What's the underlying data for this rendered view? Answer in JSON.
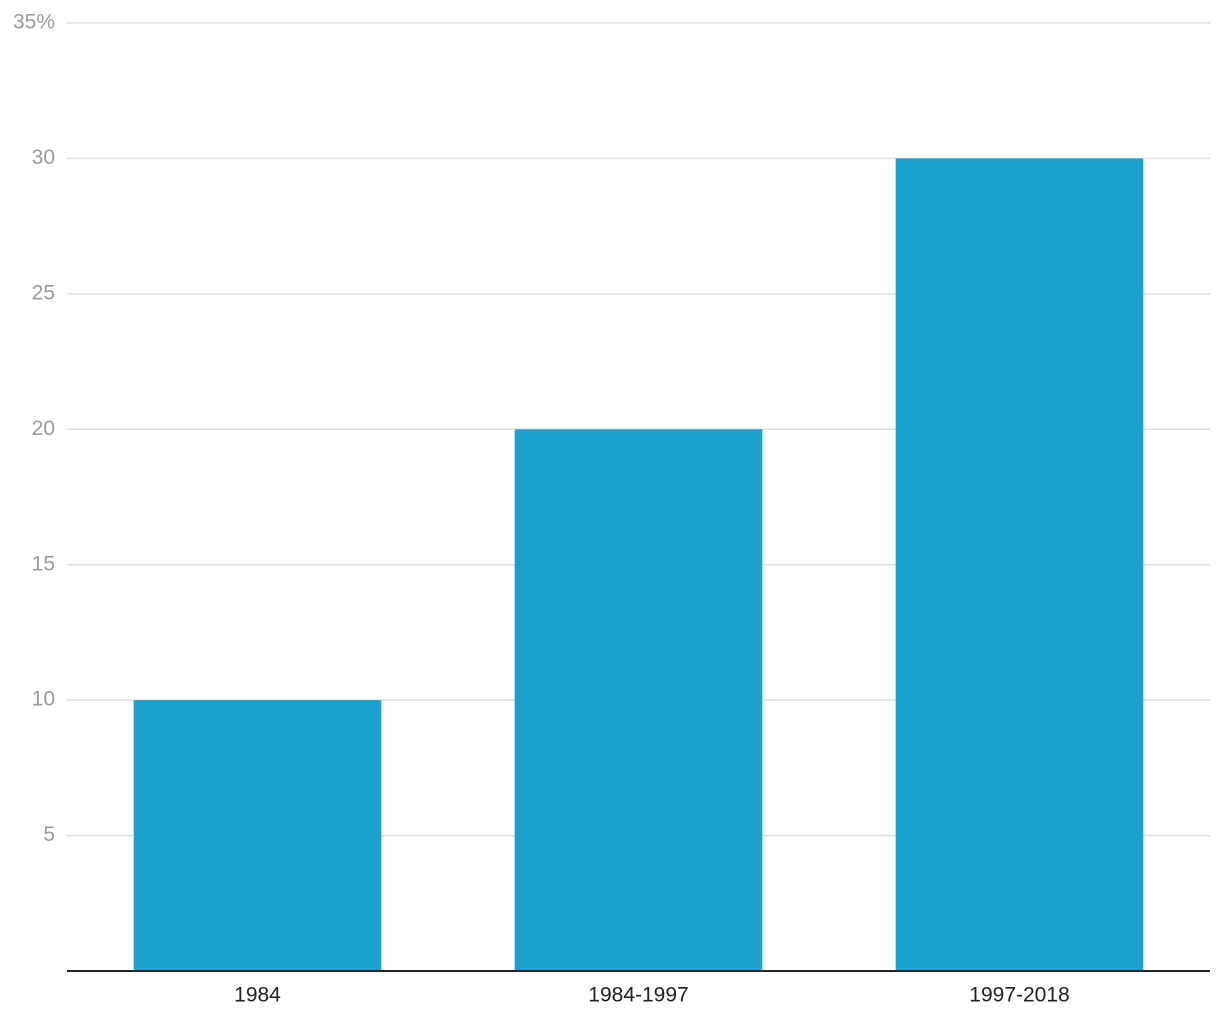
{
  "chart_data": {
    "type": "bar",
    "categories": [
      "1984",
      "1984-1997",
      "1997-2018"
    ],
    "values": [
      10,
      20,
      30
    ],
    "color": "#1aa1ce",
    "ylim": [
      0,
      35
    ],
    "yticks": [
      5,
      10,
      15,
      20,
      25,
      30,
      {
        "value": 35,
        "label": "35%"
      }
    ],
    "grid": true
  }
}
